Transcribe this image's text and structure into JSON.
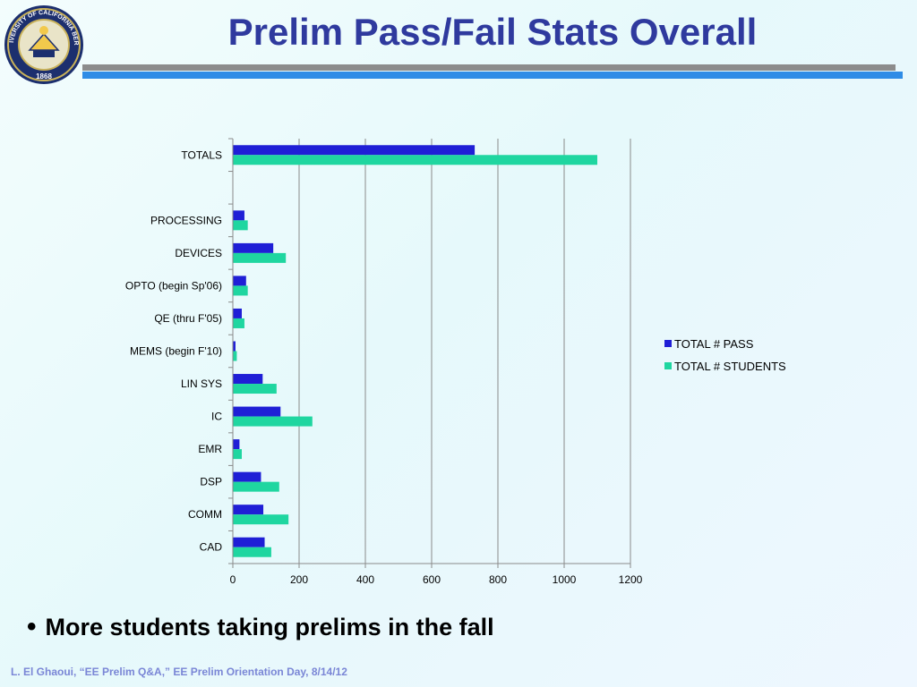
{
  "slide": {
    "title": "Prelim Pass/Fail Stats Overall",
    "bullet": "More students taking prelims in the fall",
    "footer": "L. El Ghaoui, “EE Prelim Q&A,” EE Prelim Orientation Day, 8/14/12",
    "logo": {
      "icon": "uc-seal-icon",
      "ring_text": "THE UNIVERSITY OF CALIFORNIA BERKELEY",
      "year": "1868"
    }
  },
  "colors": {
    "pass": "#1f1fd6",
    "students": "#1fd6a0",
    "title": "#2f3a9e",
    "rule_gray": "#8c8c8c",
    "rule_blue": "#2f8ce6",
    "footer": "#7a86d6"
  },
  "chart_data": {
    "type": "bar",
    "orientation": "horizontal",
    "categories": [
      "TOTALS",
      "",
      "PROCESSING",
      "DEVICES",
      "OPTO (begin Sp'06)",
      "QE (thru F'05)",
      "MEMS (begin F'10)",
      "LIN SYS",
      "IC",
      "EMR",
      "DSP",
      "COMM",
      "CAD"
    ],
    "series": [
      {
        "name": "TOTAL # PASS",
        "values": [
          730,
          0,
          35,
          122,
          40,
          27,
          8,
          90,
          144,
          20,
          85,
          92,
          96
        ]
      },
      {
        "name": "TOTAL # STUDENTS",
        "values": [
          1100,
          0,
          45,
          160,
          45,
          35,
          12,
          132,
          240,
          27,
          140,
          168,
          116
        ]
      }
    ],
    "xlim": [
      0,
      1200
    ],
    "xticks": [
      "0",
      "200",
      "400",
      "600",
      "800",
      "1000",
      "1200"
    ],
    "grid": "vertical",
    "legend_position": "right"
  }
}
